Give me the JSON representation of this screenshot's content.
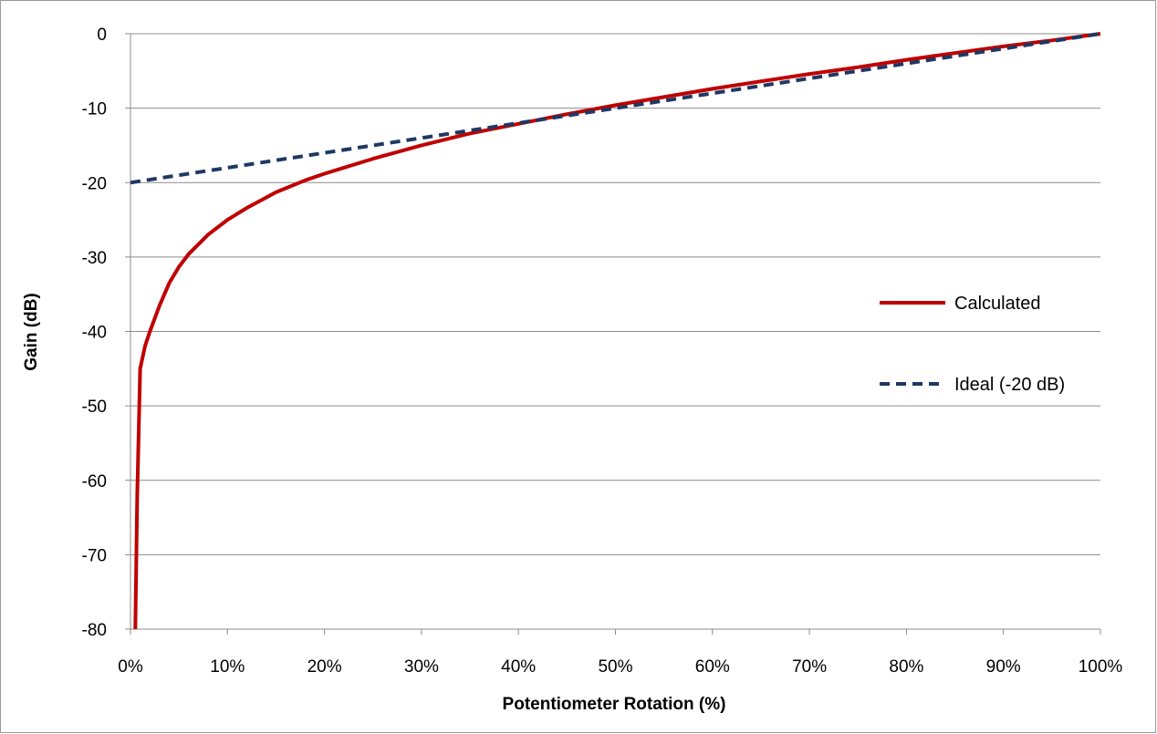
{
  "chart_data": {
    "type": "line",
    "title": "",
    "xlabel": "Potentiometer Rotation (%)",
    "ylabel": "Gain (dB)",
    "xlim": [
      0,
      100
    ],
    "ylim": [
      -80,
      0
    ],
    "x_ticks": [
      0,
      10,
      20,
      30,
      40,
      50,
      60,
      70,
      80,
      90,
      100
    ],
    "x_tick_labels": [
      "0%",
      "10%",
      "20%",
      "30%",
      "40%",
      "50%",
      "60%",
      "70%",
      "80%",
      "90%",
      "100%"
    ],
    "y_ticks": [
      0,
      -10,
      -20,
      -30,
      -40,
      -50,
      -60,
      -70,
      -80
    ],
    "y_tick_labels": [
      "0",
      "-10",
      "-20",
      "-30",
      "-40",
      "-50",
      "-60",
      "-70",
      "-80"
    ],
    "grid": "horizontal",
    "legend_position": "right",
    "series": [
      {
        "name": "Calculated",
        "color": "#c00000",
        "style": "solid",
        "x": [
          0.5,
          0.7,
          1.0,
          1.5,
          2,
          3,
          4,
          5,
          6,
          8,
          10,
          12,
          15,
          18,
          20,
          25,
          30,
          35,
          40,
          45,
          50,
          55,
          60,
          65,
          70,
          75,
          80,
          85,
          90,
          95,
          100
        ],
        "y": [
          -80,
          -62,
          -45,
          -42,
          -40,
          -36.5,
          -33.5,
          -31.3,
          -29.6,
          -27,
          -25,
          -23.4,
          -21.3,
          -19.7,
          -18.8,
          -16.8,
          -15.0,
          -13.4,
          -12.1,
          -10.8,
          -9.6,
          -8.5,
          -7.4,
          -6.4,
          -5.4,
          -4.5,
          -3.5,
          -2.6,
          -1.7,
          -0.9,
          0
        ]
      },
      {
        "name": "Ideal (-20 dB)",
        "color": "#1f3864",
        "style": "dashed",
        "x": [
          0,
          100
        ],
        "y": [
          -20,
          0
        ]
      }
    ]
  }
}
